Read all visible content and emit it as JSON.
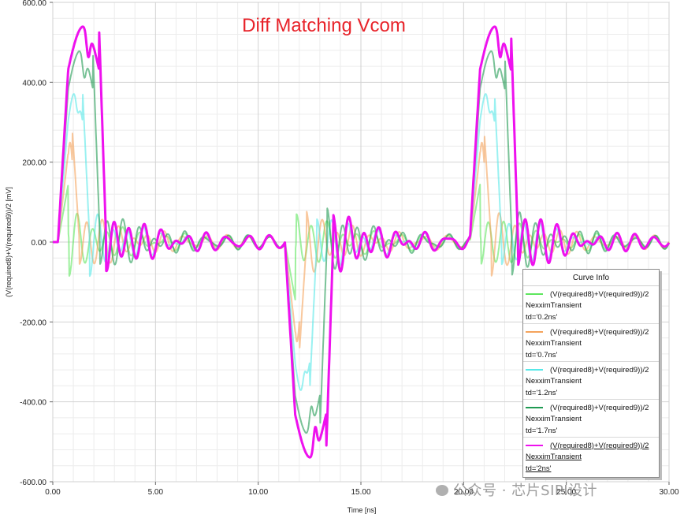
{
  "chart_data": {
    "type": "line",
    "title": "Diff Matching Vcom",
    "title_color": "#e8232a",
    "xlabel": "Time [ns]",
    "ylabel": "(V(required8)+V(required9))/2 [mV]",
    "xlim": [
      0,
      30
    ],
    "ylim": [
      -600,
      600
    ],
    "x_ticks": [
      0,
      5,
      10,
      15,
      20,
      25,
      30
    ],
    "x_tick_labels": [
      "0.00",
      "5.00",
      "10.00",
      "15.00",
      "20.00",
      "25.00",
      "30.00"
    ],
    "y_ticks": [
      600,
      400,
      200,
      0,
      -200,
      -400,
      -600
    ],
    "y_tick_labels": [
      "600.00",
      "400.00",
      "200.00",
      "0.00",
      "-200.00",
      "-400.00",
      "-600.00"
    ],
    "grid": true,
    "legend_position": "bottom-right",
    "edge_times": {
      "rise1": 0.25,
      "fall1": 11.3,
      "rise2": 20.3
    },
    "series": [
      {
        "name": "(V(required8)+V(required9))/2",
        "source": "NexximTransient",
        "param": "td='0.2ns'",
        "td": 0.2,
        "color": "#5ee65e"
      },
      {
        "name": "(V(required8)+V(required9))/2",
        "source": "NexximTransient",
        "param": "td='0.7ns'",
        "td": 0.7,
        "color": "#f5a35c"
      },
      {
        "name": "(V(required8)+V(required9))/2",
        "source": "NexximTransient",
        "param": "td='1.2ns'",
        "td": 1.2,
        "color": "#56e8e8"
      },
      {
        "name": "(V(required8)+V(required9))/2",
        "source": "NexximTransient",
        "param": "td='1.7ns'",
        "td": 1.7,
        "color": "#1f9a52"
      },
      {
        "name": "(V(required8)+V(required9))/2",
        "source": "NexximTransient",
        "param": "td='2ns'",
        "td": 2.0,
        "color": "#ee11ee",
        "selected": true
      }
    ]
  },
  "legend": {
    "title": "Curve Info"
  },
  "watermark": {
    "text": "公众号 · 芯片SIPI设计"
  }
}
